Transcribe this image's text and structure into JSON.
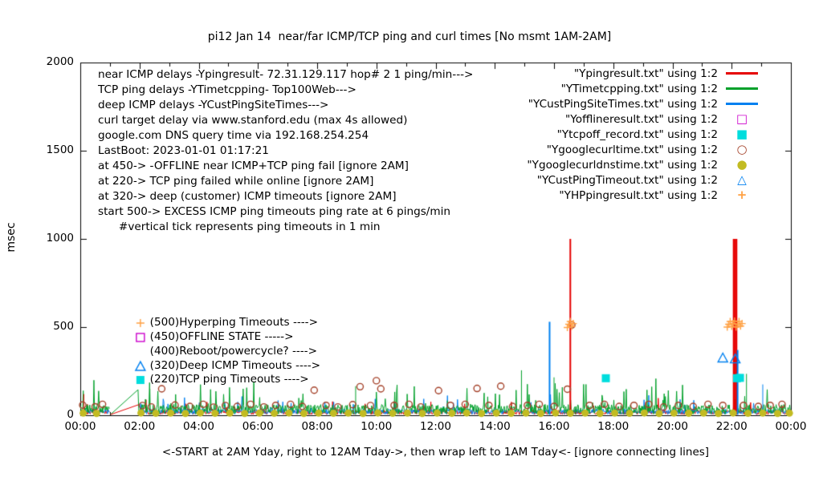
{
  "chart_data": {
    "type": "line",
    "title": "pi12 Jan 14  near/far ICMP/TCP ping and curl times [No msmt 1AM-2AM]",
    "xlabel": "<-START at 2AM Yday, right to 12AM Tday->, then wrap left to 1AM Tday<- [ignore connecting lines]",
    "ylabel": "msec",
    "xlim": [
      0,
      24
    ],
    "ylim": [
      0,
      2000
    ],
    "x_ticks": [
      {
        "v": 0,
        "label": "00:00"
      },
      {
        "v": 2,
        "label": "02:00"
      },
      {
        "v": 4,
        "label": "04:00"
      },
      {
        "v": 6,
        "label": "06:00"
      },
      {
        "v": 8,
        "label": "08:00"
      },
      {
        "v": 10,
        "label": "10:00"
      },
      {
        "v": 12,
        "label": "12:00"
      },
      {
        "v": 14,
        "label": "14:00"
      },
      {
        "v": 16,
        "label": "16:00"
      },
      {
        "v": 18,
        "label": "18:00"
      },
      {
        "v": 20,
        "label": "20:00"
      },
      {
        "v": 22,
        "label": "22:00"
      },
      {
        "v": 24,
        "label": "00:00"
      }
    ],
    "y_ticks": [
      {
        "v": 0,
        "label": "0"
      },
      {
        "v": 500,
        "label": "500"
      },
      {
        "v": 1000,
        "label": "1000"
      },
      {
        "v": 1500,
        "label": "1500"
      },
      {
        "v": 2000,
        "label": "2000"
      }
    ],
    "no_measurement_gap": [
      1,
      2
    ],
    "info_lines": [
      "near ICMP delays -Ypingresult- 72.31.129.117 hop# 2 1 ping/min--->",
      "TCP ping delays -YTimetcpping- Top100Web--->",
      "deep ICMP delays -YCustPingSiteTimes--->",
      "curl target delay via www.stanford.edu (max 4s allowed)",
      "google.com DNS query time via 192.168.254.254",
      "LastBoot: 2023-01-01 01:17:21",
      "at 450-> -OFFLINE near ICMP+TCP ping fail [ignore 2AM]",
      "at 220-> TCP ping failed while online [ignore 2AM]",
      "at 320-> deep (customer) ICMP timeouts [ignore 2AM]",
      "start 500-> EXCESS ICMP ping timeouts ping rate at 6 pings/min",
      "      #vertical tick represents ping timeouts in 1 min"
    ],
    "lines": [
      {
        "name": "near-icmp",
        "file": "Ypingresult.txt",
        "color": "#e60000",
        "base": 4,
        "amp": 26,
        "spike_prob": 0.025,
        "spike_amp": 70,
        "seed": 101,
        "spikes": [
          [
            0.12,
            120,
            1
          ],
          [
            16.55,
            1000,
            2
          ],
          [
            22.08,
            1000,
            3
          ],
          [
            22.15,
            1000,
            3
          ]
        ]
      },
      {
        "name": "deep-icmp",
        "file": "YCustPingSiteTimes.txt",
        "color": "#0080f0",
        "base": 6,
        "amp": 30,
        "spike_prob": 0.04,
        "spike_amp": 90,
        "seed": 202,
        "spikes": [
          [
            15.85,
            530,
            2
          ],
          [
            22.2,
            370,
            2
          ],
          [
            23.05,
            175,
            1
          ]
        ]
      },
      {
        "name": "tcp-ping",
        "file": "YTimetcpping.txt",
        "color": "#00a02a",
        "base": 6,
        "amp": 55,
        "spike_prob": 0.08,
        "spike_amp": 150,
        "seed": 303,
        "spikes": [
          [
            2.35,
            150,
            1
          ],
          [
            9.3,
            165,
            1
          ],
          [
            14.9,
            255,
            1
          ],
          [
            16.0,
            215,
            1
          ],
          [
            22.5,
            235,
            1
          ]
        ]
      }
    ],
    "artifact_lines": [
      {
        "color": "#00a02a",
        "points": [
          [
            1.02,
            4
          ],
          [
            1.95,
            145
          ],
          [
            1.98,
            8
          ]
        ]
      },
      {
        "color": "#e60000",
        "points": [
          [
            1.02,
            4
          ],
          [
            1.97,
            60
          ]
        ]
      }
    ],
    "scatter": [
      {
        "name": "Ygooglecurltime",
        "marker": "circle-open",
        "color": "#a5422a",
        "size": 8,
        "points": [
          [
            0.08,
            58
          ],
          [
            0.5,
            48
          ],
          [
            0.75,
            62
          ],
          [
            2.1,
            55
          ],
          [
            2.4,
            47
          ],
          [
            2.75,
            150
          ],
          [
            3.2,
            58
          ],
          [
            3.7,
            50
          ],
          [
            4.15,
            62
          ],
          [
            4.5,
            46
          ],
          [
            4.9,
            55
          ],
          [
            5.3,
            50
          ],
          [
            5.75,
            62
          ],
          [
            6.2,
            47
          ],
          [
            6.6,
            56
          ],
          [
            7.1,
            62
          ],
          [
            7.5,
            50
          ],
          [
            7.9,
            142
          ],
          [
            8.3,
            56
          ],
          [
            8.7,
            47
          ],
          [
            9.2,
            60
          ],
          [
            9.45,
            162
          ],
          [
            9.8,
            55
          ],
          [
            10.0,
            196
          ],
          [
            10.15,
            150
          ],
          [
            10.6,
            56
          ],
          [
            11.1,
            62
          ],
          [
            11.5,
            47
          ],
          [
            12.1,
            140
          ],
          [
            12.5,
            56
          ],
          [
            13.0,
            62
          ],
          [
            13.4,
            152
          ],
          [
            13.8,
            56
          ],
          [
            14.2,
            165
          ],
          [
            14.6,
            50
          ],
          [
            15.1,
            56
          ],
          [
            15.5,
            62
          ],
          [
            16.0,
            50
          ],
          [
            16.45,
            148
          ],
          [
            16.6,
            512
          ],
          [
            17.2,
            56
          ],
          [
            17.7,
            62
          ],
          [
            18.2,
            50
          ],
          [
            18.7,
            56
          ],
          [
            19.2,
            62
          ],
          [
            19.7,
            47
          ],
          [
            20.2,
            56
          ],
          [
            20.7,
            50
          ],
          [
            21.2,
            62
          ],
          [
            21.7,
            56
          ],
          [
            22.4,
            56
          ],
          [
            22.9,
            50
          ],
          [
            23.3,
            56
          ],
          [
            23.7,
            62
          ]
        ]
      },
      {
        "name": "Ygooglecurldnstime",
        "marker": "circle-filled",
        "color": "#c2bb22",
        "size": 9,
        "points": [
          [
            0.1,
            12
          ],
          [
            0.55,
            10
          ],
          [
            2.05,
            13
          ],
          [
            2.55,
            11
          ],
          [
            3.05,
            12
          ],
          [
            3.55,
            10
          ],
          [
            4.05,
            13
          ],
          [
            4.55,
            11
          ],
          [
            5.05,
            12
          ],
          [
            5.55,
            10
          ],
          [
            6.05,
            12
          ],
          [
            6.55,
            11
          ],
          [
            7.05,
            13
          ],
          [
            7.55,
            10
          ],
          [
            8.05,
            12
          ],
          [
            8.55,
            11
          ],
          [
            9.05,
            12
          ],
          [
            9.55,
            10
          ],
          [
            10.05,
            13
          ],
          [
            10.55,
            11
          ],
          [
            11.05,
            12
          ],
          [
            11.55,
            10
          ],
          [
            12.05,
            12
          ],
          [
            12.55,
            11
          ],
          [
            13.05,
            13
          ],
          [
            13.55,
            10
          ],
          [
            14.05,
            12
          ],
          [
            14.55,
            11
          ],
          [
            15.05,
            12
          ],
          [
            15.55,
            10
          ],
          [
            16.05,
            13
          ],
          [
            16.55,
            11
          ],
          [
            17.05,
            12
          ],
          [
            17.55,
            10
          ],
          [
            18.05,
            12
          ],
          [
            18.55,
            11
          ],
          [
            19.05,
            13
          ],
          [
            19.55,
            10
          ],
          [
            20.05,
            12
          ],
          [
            20.55,
            11
          ],
          [
            21.05,
            12
          ],
          [
            21.55,
            10
          ],
          [
            22.05,
            13
          ],
          [
            22.55,
            11
          ],
          [
            23.05,
            12
          ],
          [
            23.55,
            10
          ],
          [
            23.95,
            12
          ]
        ]
      },
      {
        "name": "Ytcpoff_record",
        "marker": "square-filled",
        "color": "#00dddd",
        "size": 10,
        "points": [
          [
            17.75,
            210
          ],
          [
            22.18,
            210
          ],
          [
            22.28,
            212
          ]
        ]
      },
      {
        "name": "YCustPingTimeout",
        "marker": "triangle-open",
        "color": "#0080f0",
        "size": 10,
        "points": [
          [
            21.7,
            325
          ],
          [
            22.12,
            320
          ]
        ]
      },
      {
        "name": "Yofflineresult",
        "marker": "square-open",
        "color": "#cc00cc",
        "size": 9,
        "points": []
      },
      {
        "name": "YHPpingresult",
        "marker": "plus",
        "color": "#ffa042",
        "size": 9,
        "points": [
          [
            16.45,
            498
          ],
          [
            16.5,
            516
          ],
          [
            16.55,
            532
          ],
          [
            16.6,
            504
          ],
          [
            16.65,
            520
          ],
          [
            21.85,
            500
          ],
          [
            21.9,
            516
          ],
          [
            21.95,
            532
          ],
          [
            22.0,
            504
          ],
          [
            22.05,
            520
          ],
          [
            22.1,
            534
          ],
          [
            22.15,
            500
          ],
          [
            22.2,
            516
          ],
          [
            22.25,
            532
          ],
          [
            22.3,
            506
          ],
          [
            22.35,
            520
          ]
        ]
      }
    ],
    "legend": [
      {
        "label": "\"Ypingresult.txt\" using 1:2",
        "symbol": "line",
        "color": "#e60000"
      },
      {
        "label": "\"YTimetcpping.txt\" using 1:2",
        "symbol": "line",
        "color": "#00a02a"
      },
      {
        "label": "\"YCustPingSiteTimes.txt\" using 1:2",
        "symbol": "line",
        "color": "#0080f0"
      },
      {
        "label": "\"Yofflineresult.txt\" using 1:2",
        "symbol": "square-open",
        "color": "#cc00cc"
      },
      {
        "label": "\"Ytcpoff_record.txt\" using 1:2",
        "symbol": "square-filled",
        "color": "#00dddd"
      },
      {
        "label": "\"Ygooglecurltime.txt\" using 1:2",
        "symbol": "circle-open",
        "color": "#a5422a"
      },
      {
        "label": "\"Ygooglecurldnstime.txt\" using 1:2",
        "symbol": "circle-filled",
        "color": "#c2bb22"
      },
      {
        "label": "\"YCustPingTimeout.txt\" using 1:2",
        "symbol": "triangle-open",
        "color": "#0080f0"
      },
      {
        "label": "\"YHPpingresult.txt\" using 1:2",
        "symbol": "plus",
        "color": "#ffa042"
      }
    ],
    "level_annotations": [
      {
        "y": 523,
        "x_marker": 2.03,
        "x_text": 2.35,
        "marker": "plus",
        "color": "#ffa042",
        "text": "(500)Hyperping Timeouts ---->"
      },
      {
        "y": 441,
        "x_marker": 2.03,
        "x_text": 2.35,
        "marker": "square-open",
        "color": "#cc00cc",
        "text": "(450)OFFLINE STATE ----->"
      },
      {
        "y": 359,
        "x_marker": null,
        "x_text": 2.35,
        "marker": "none",
        "color": "#000000",
        "text": "(400)Reboot/powercycle? ---->"
      },
      {
        "y": 277,
        "x_marker": 2.03,
        "x_text": 2.35,
        "marker": "triangle-open",
        "color": "#0080f0",
        "text": "(320)Deep ICMP Timeouts ---->"
      },
      {
        "y": 200,
        "x_marker": 2.03,
        "x_text": 2.35,
        "marker": "square-filled",
        "color": "#00dddd",
        "text": "(220)TCP ping Timeouts ---->"
      }
    ]
  }
}
